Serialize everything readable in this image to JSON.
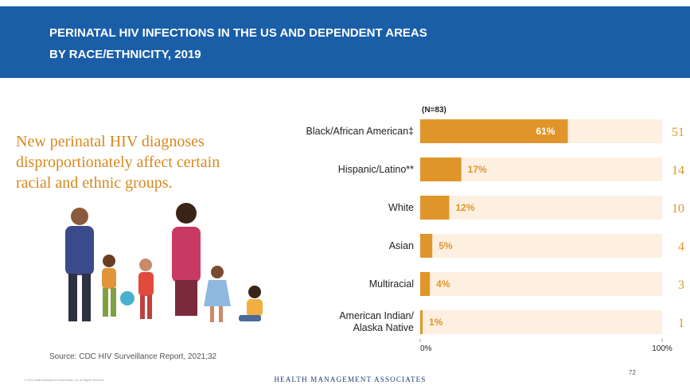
{
  "header": {
    "title_lines": [
      "PERINATAL HIV INFECTIONS IN THE US AND DEPENDENT AREAS",
      "BY RACE/ETHNICITY, 2019"
    ]
  },
  "callout_lines": [
    "New perinatal HIV diagnoses",
    "disproportionately affect certain",
    "racial and ethnic groups."
  ],
  "source": "Source:  CDC HIV Surveillance Report, 2021;32",
  "footer": {
    "copyright": "© 2024 Health Management Associates, Inc. All Rights Reserved.",
    "brand": "Health Management Associates",
    "page": "72"
  },
  "chart_data": {
    "type": "bar",
    "orientation": "horizontal",
    "note": "(N=83)",
    "categories": [
      "Black/African American‡",
      "Hispanic/Latino**",
      "White",
      "Asian",
      "Multiracial",
      "American Indian/\nAlaska Native"
    ],
    "values": [
      61,
      17,
      12,
      5,
      4,
      1
    ],
    "value_labels": [
      "61%",
      "17%",
      "12%",
      "5%",
      "4%",
      "1%"
    ],
    "counts": [
      "51",
      "14",
      "10",
      "4",
      "3",
      "1"
    ],
    "color": "#e0952a",
    "track_color": "#fdf0e0",
    "xlim": [
      0,
      100
    ],
    "xticks": [
      {
        "value": 0,
        "label": "0%"
      },
      {
        "value": 100,
        "label": "100%"
      }
    ]
  }
}
